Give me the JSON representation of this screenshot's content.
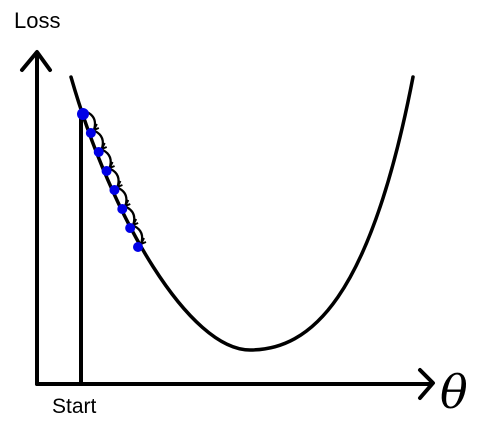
{
  "axes": {
    "y_label": "Loss",
    "x_label": "θ",
    "start_label": "Start"
  },
  "curve": {
    "shape": "convex loss curve with a single minimum",
    "stroke_color": "#000000"
  },
  "steps": {
    "count": 8,
    "dot_color": "#0000e6",
    "arrow_icon": "curved-arrow-icon"
  }
}
